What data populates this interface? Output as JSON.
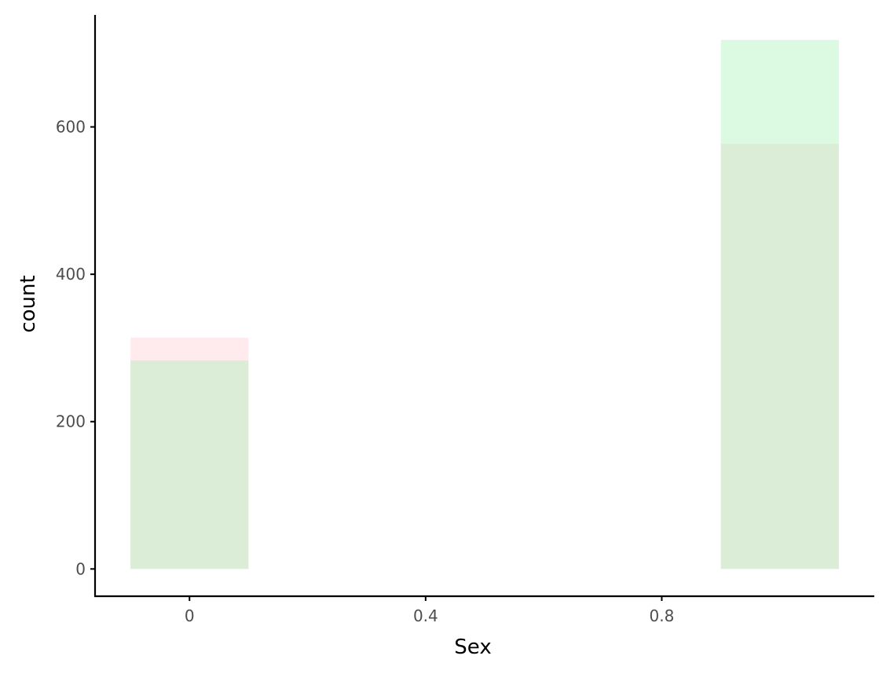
{
  "chart_data": {
    "type": "bar",
    "xlabel": "Sex",
    "ylabel": "count",
    "xlim": [
      -0.16,
      1.16
    ],
    "ylim": [
      -37,
      752
    ],
    "x_ticks": [
      {
        "value": 0,
        "label": "0"
      },
      {
        "value": 0.4,
        "label": "0.4"
      },
      {
        "value": 0.8,
        "label": "0.8"
      }
    ],
    "y_ticks": [
      {
        "value": 0,
        "label": "0"
      },
      {
        "value": 200,
        "label": "200"
      },
      {
        "value": 400,
        "label": "400"
      },
      {
        "value": 600,
        "label": "600"
      }
    ],
    "bar_width": 0.2,
    "grid": false,
    "series": [
      {
        "color": "#ffccd5",
        "opacity": 0.4,
        "bars": [
          {
            "x": 0,
            "value": 314
          },
          {
            "x": 1,
            "value": 577
          }
        ]
      },
      {
        "color": "#a8f0b4",
        "opacity": 0.4,
        "bars": [
          {
            "x": 0,
            "value": 283
          },
          {
            "x": 1,
            "value": 718
          }
        ]
      }
    ]
  }
}
